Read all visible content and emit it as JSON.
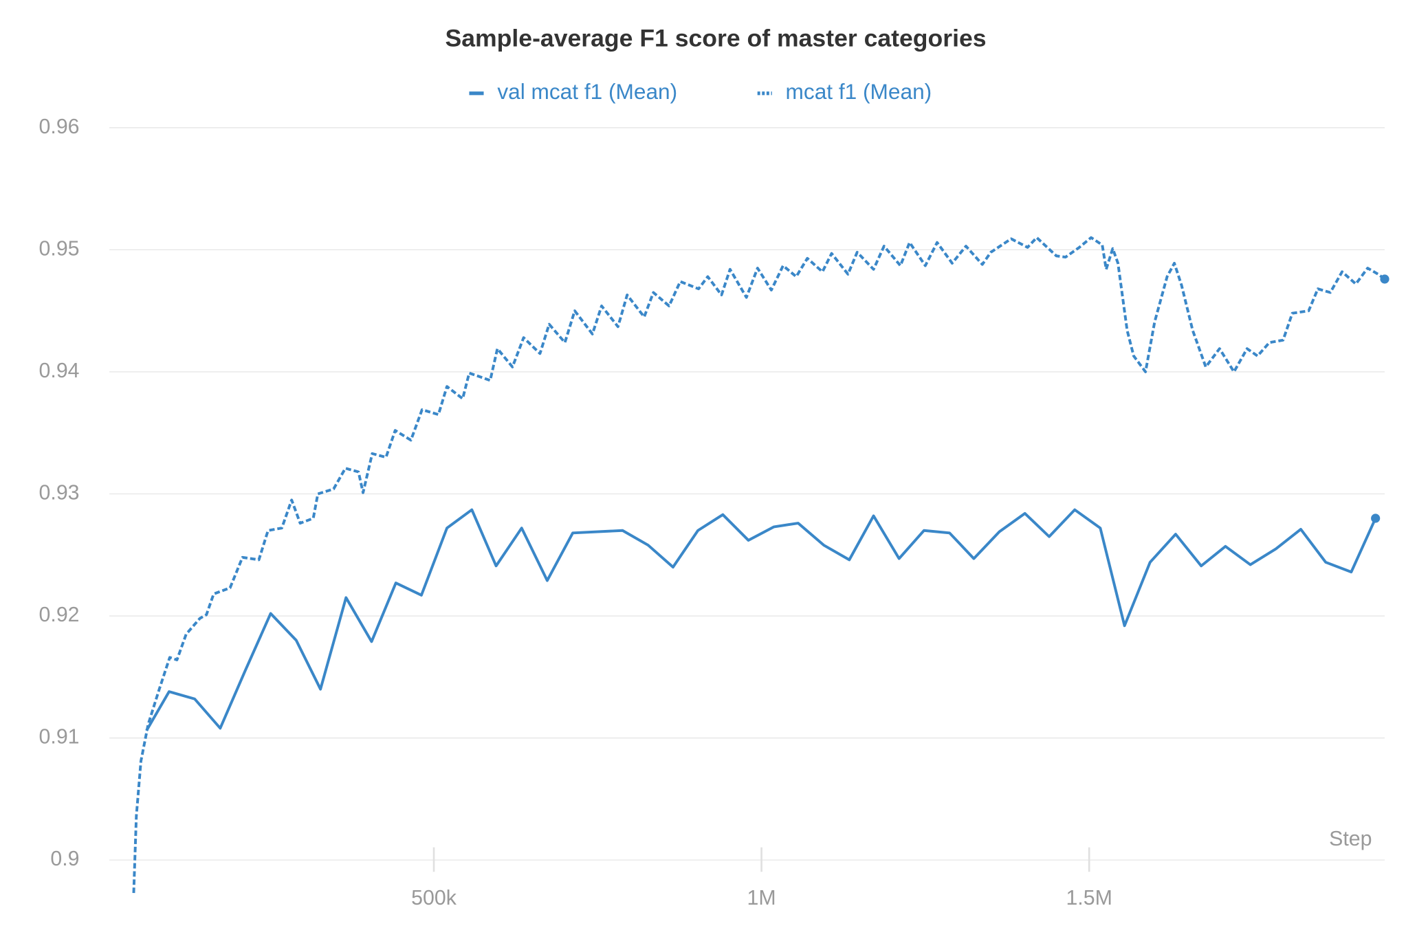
{
  "chart_data": {
    "type": "line",
    "title": "Sample-average F1 score of master categories",
    "x_label": "Step",
    "xlim": [
      0,
      1951000
    ],
    "ylim": [
      0.897,
      0.961
    ],
    "xticks": [
      {
        "value": 500000,
        "label": "500k"
      },
      {
        "value": 1000000,
        "label": "1M"
      },
      {
        "value": 1500000,
        "label": "1.5M"
      }
    ],
    "yticks": [
      0.9,
      0.91,
      0.92,
      0.93,
      0.94,
      0.95,
      0.96
    ],
    "grid": true,
    "legend": "top",
    "series": [
      {
        "name": "val mcat f1 (Mean)",
        "color": "#3a87c8",
        "style": "solid",
        "x": [
          61500,
          96000,
          135000,
          174000,
          212000,
          251000,
          290000,
          327000,
          366000,
          405000,
          442000,
          481000,
          520000,
          558000,
          595000,
          634000,
          673000,
          712000,
          788000,
          827000,
          865000,
          903000,
          941000,
          980000,
          1019000,
          1056000,
          1095000,
          1134000,
          1171000,
          1210000,
          1248000,
          1287000,
          1324000,
          1363000,
          1402000,
          1439000,
          1478000,
          1517000,
          1554000,
          1593000,
          1632000,
          1671000,
          1708000,
          1746000,
          1785000,
          1823000,
          1861000,
          1900000,
          1937000
        ],
        "values": [
          0.9106,
          0.9138,
          0.9132,
          0.9108,
          0.9155,
          0.9202,
          0.918,
          0.914,
          0.9215,
          0.9179,
          0.9227,
          0.9217,
          0.9272,
          0.9287,
          0.9241,
          0.9272,
          0.9229,
          0.9268,
          0.927,
          0.9258,
          0.924,
          0.927,
          0.9283,
          0.9262,
          0.9273,
          0.9276,
          0.9258,
          0.9246,
          0.9282,
          0.9247,
          0.927,
          0.9268,
          0.9247,
          0.9269,
          0.9284,
          0.9265,
          0.9287,
          0.9272,
          0.9192,
          0.9244,
          0.9267,
          0.9241,
          0.9257,
          0.9242,
          0.9255,
          0.9271,
          0.9244,
          0.9236,
          0.928
        ]
      },
      {
        "name": "mcat f1 (Mean)",
        "color": "#3a87c8",
        "style": "dotted",
        "x": [
          42000,
          46000,
          53000,
          64000,
          81000,
          97000,
          108000,
          122000,
          143000,
          153000,
          164000,
          189000,
          208000,
          233000,
          247000,
          268000,
          283000,
          296000,
          316000,
          323000,
          347000,
          365000,
          385000,
          392000,
          406000,
          427000,
          441000,
          465000,
          482000,
          507000,
          520000,
          544000,
          554000,
          586000,
          597000,
          620000,
          637000,
          662000,
          676000,
          700000,
          715000,
          742000,
          756000,
          781000,
          795000,
          821000,
          835000,
          859000,
          876000,
          904000,
          918000,
          939000,
          952000,
          977000,
          994000,
          1015000,
          1033000,
          1053000,
          1070000,
          1093000,
          1107000,
          1132000,
          1146000,
          1171000,
          1187000,
          1212000,
          1226000,
          1250000,
          1268000,
          1291000,
          1312000,
          1337000,
          1350000,
          1381000,
          1406000,
          1420000,
          1450000,
          1464000,
          1485000,
          1503000,
          1520000,
          1526000,
          1536000,
          1544000,
          1558000,
          1568000,
          1586000,
          1600000,
          1619000,
          1630000,
          1641000,
          1658000,
          1678000,
          1699000,
          1721000,
          1741000,
          1757000,
          1775000,
          1796000,
          1810000,
          1835000,
          1849000,
          1868000,
          1886000,
          1907000,
          1925000,
          1941000,
          1951000
        ],
        "values": [
          0.8973,
          0.9036,
          0.9081,
          0.9111,
          0.914,
          0.9166,
          0.9164,
          0.9185,
          0.9198,
          0.9201,
          0.9218,
          0.9223,
          0.9248,
          0.9246,
          0.927,
          0.9272,
          0.9295,
          0.9276,
          0.928,
          0.93,
          0.9304,
          0.9321,
          0.9318,
          0.9301,
          0.9333,
          0.933,
          0.9352,
          0.9344,
          0.9369,
          0.9365,
          0.9388,
          0.9378,
          0.9399,
          0.9393,
          0.9419,
          0.9404,
          0.9428,
          0.9415,
          0.9439,
          0.9424,
          0.945,
          0.9431,
          0.9454,
          0.9437,
          0.9463,
          0.9445,
          0.9465,
          0.9454,
          0.9474,
          0.9468,
          0.9478,
          0.9463,
          0.9484,
          0.9461,
          0.9485,
          0.9467,
          0.9487,
          0.9478,
          0.9493,
          0.9482,
          0.9497,
          0.948,
          0.9498,
          0.9484,
          0.9503,
          0.9487,
          0.9506,
          0.9487,
          0.9506,
          0.9489,
          0.9503,
          0.9488,
          0.9498,
          0.9509,
          0.9502,
          0.951,
          0.9495,
          0.9494,
          0.9502,
          0.951,
          0.9504,
          0.9484,
          0.9501,
          0.9489,
          0.9434,
          0.9413,
          0.94,
          0.9441,
          0.9478,
          0.9489,
          0.9471,
          0.9434,
          0.9404,
          0.9419,
          0.94,
          0.9419,
          0.9413,
          0.9424,
          0.9426,
          0.9448,
          0.945,
          0.9468,
          0.9465,
          0.9482,
          0.9472,
          0.9485,
          0.948,
          0.9476
        ]
      }
    ]
  }
}
